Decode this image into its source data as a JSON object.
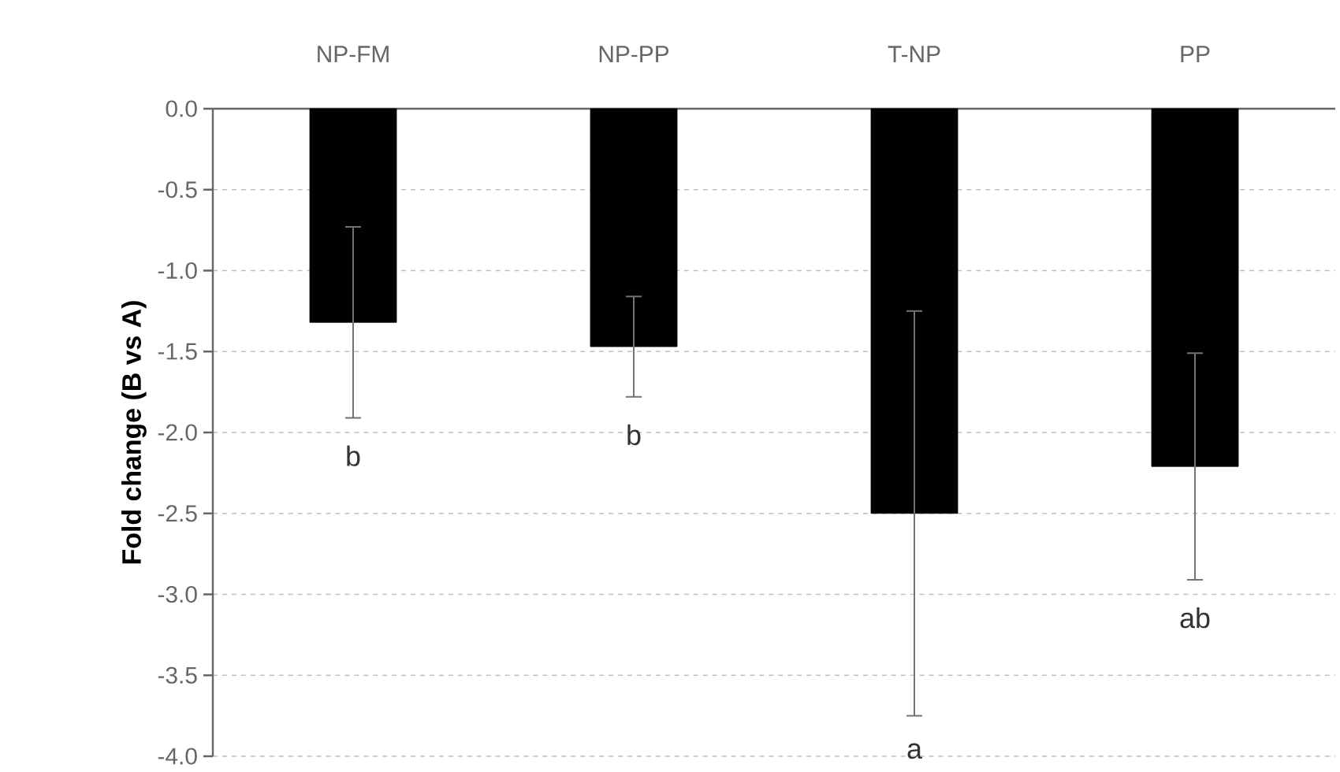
{
  "chart_data": {
    "type": "bar",
    "ylabel": "Fold change (B vs A)",
    "categories": [
      "NP-FM",
      "NP-PP",
      "T-NP",
      "PP"
    ],
    "values": [
      -1.32,
      -1.47,
      -2.5,
      -2.21
    ],
    "errors": [
      0.59,
      0.31,
      1.25,
      0.7
    ],
    "color": "#000000",
    "ylim": [
      -4.0,
      0.0
    ],
    "yticks": [
      {
        "value": 0.0,
        "label": "0.0"
      },
      {
        "value": -0.5,
        "label": "-0.5"
      },
      {
        "value": -1.0,
        "label": "-1.0"
      },
      {
        "value": -1.5,
        "label": "-1.5"
      },
      {
        "value": -2.0,
        "label": "-2.0"
      },
      {
        "value": -2.5,
        "label": "-2.5"
      },
      {
        "value": -3.0,
        "label": "-3.0"
      },
      {
        "value": -3.5,
        "label": "-3.5"
      },
      {
        "value": -4.0,
        "label": "-4.0"
      }
    ],
    "grid": "y",
    "annotations": [
      "b",
      "b",
      "a",
      "ab"
    ]
  }
}
